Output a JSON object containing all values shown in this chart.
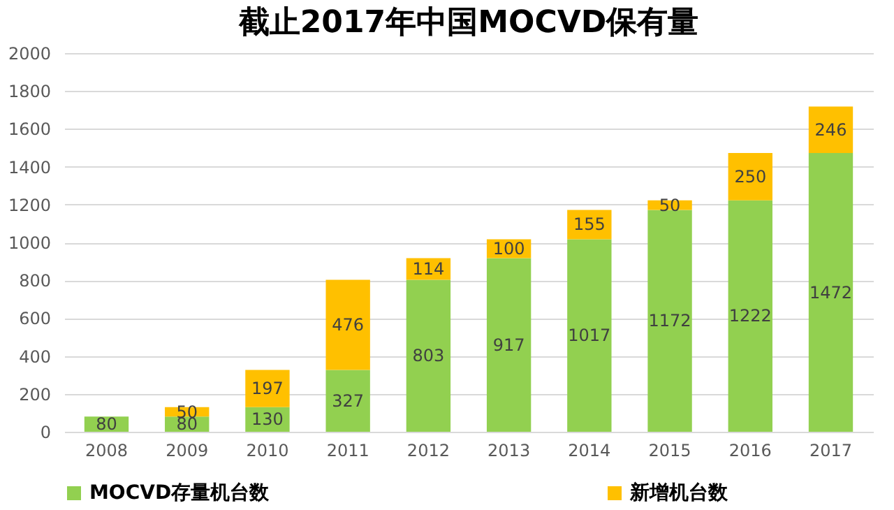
{
  "chart_data": {
    "type": "bar",
    "title": "截止2017年中国MOCVD保有量",
    "stacked": true,
    "categories": [
      "2008",
      "2009",
      "2010",
      "2011",
      "2012",
      "2013",
      "2014",
      "2015",
      "2016",
      "2017"
    ],
    "series": [
      {
        "name": "MOCVD存量机台数",
        "color": "#92d050",
        "values": [
          80,
          80,
          130,
          327,
          803,
          917,
          1017,
          1172,
          1222,
          1472
        ]
      },
      {
        "name": "新增机台数",
        "color": "#ffc000",
        "values": [
          null,
          50,
          197,
          476,
          114,
          100,
          155,
          50,
          250,
          246
        ]
      }
    ],
    "ylim": [
      0,
      2000
    ],
    "yticks": [
      0,
      200,
      400,
      600,
      800,
      1000,
      1200,
      1400,
      1600,
      1800,
      2000
    ],
    "grid": "y",
    "legend": "bottom",
    "data_labels": true
  }
}
